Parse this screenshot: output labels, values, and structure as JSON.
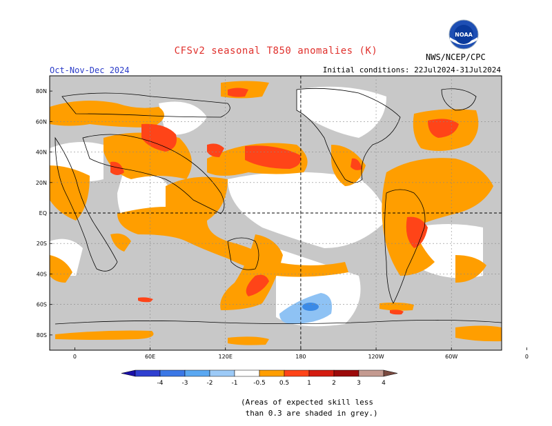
{
  "header": {
    "title": "CFSv2 seasonal T850 anomalies (K)",
    "season": "Oct-Nov-Dec 2024",
    "initial_conditions": "Initial conditions: 22Jul2024-31Jul2024",
    "org": "NWS/NCEP/CPC",
    "logo_text": "NOAA"
  },
  "axes": {
    "lat_labels": [
      "80N",
      "60N",
      "40N",
      "20N",
      "EQ",
      "20S",
      "40S",
      "60S",
      "80S"
    ],
    "lon_labels": [
      "0",
      "60E",
      "120E",
      "180",
      "120W",
      "60W",
      "0"
    ]
  },
  "colorbar": {
    "tick_labels": [
      "-4",
      "-3",
      "-2",
      "-1",
      "-0.5",
      "0.5",
      "1",
      "2",
      "3",
      "4"
    ],
    "colors": [
      "#1a10a8",
      "#2f3fd0",
      "#3b78e6",
      "#5aa8f2",
      "#9ccaf7",
      "#ffffff",
      "#ff9e00",
      "#ff4418",
      "#d41c10",
      "#9c0a0a",
      "#c49a90",
      "#7a4a40"
    ]
  },
  "legend_colors": {
    "grey_low_skill": "#c8c8c8",
    "orange_0_5_1": "#ff9e00",
    "red_1_2": "#ff4418",
    "darkred_2_3": "#d41c10",
    "lightblue_m1_m0_5": "#8ec2f4",
    "blue_m2_m1": "#3b8ae6"
  },
  "footnote": "(Areas of expected skill less\n than 0.3 are shaded in grey.)"
}
